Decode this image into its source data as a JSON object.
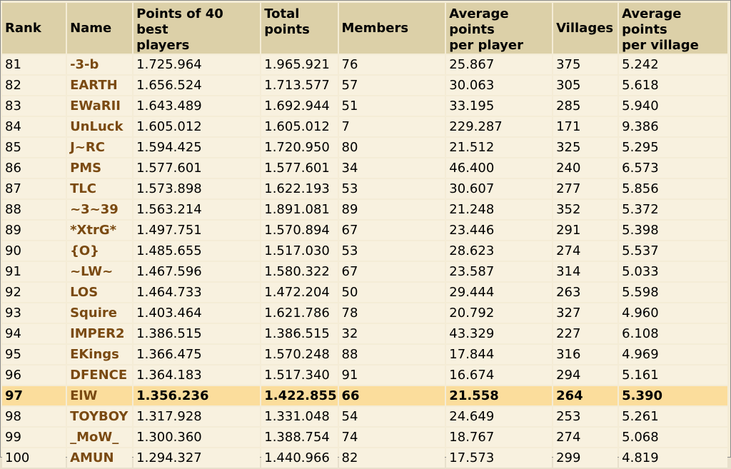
{
  "headers": {
    "rank": "Rank",
    "name": "Name",
    "points40": [
      "Points of 40 best",
      "players"
    ],
    "total": [
      "Total",
      "points"
    ],
    "members": "Members",
    "avg_player": [
      "Average points",
      "per player"
    ],
    "villages": "Villages",
    "avg_village": [
      "Average points",
      "per village"
    ]
  },
  "highlight_color": "#fbdd9c",
  "name_color": "#7a4a12",
  "rows": [
    {
      "rank": "81",
      "name": "-3-b",
      "p40": "1.725.964",
      "total": "1.965.921",
      "members": "76",
      "avg_player": "25.867",
      "villages": "375",
      "avg_village": "5.242"
    },
    {
      "rank": "82",
      "name": "EARTH",
      "p40": "1.656.524",
      "total": "1.713.577",
      "members": "57",
      "avg_player": "30.063",
      "villages": "305",
      "avg_village": "5.618"
    },
    {
      "rank": "83",
      "name": "EWaRII",
      "p40": "1.643.489",
      "total": "1.692.944",
      "members": "51",
      "avg_player": "33.195",
      "villages": "285",
      "avg_village": "5.940"
    },
    {
      "rank": "84",
      "name": "UnLuck",
      "p40": "1.605.012",
      "total": "1.605.012",
      "members": "7",
      "avg_player": "229.287",
      "villages": "171",
      "avg_village": "9.386"
    },
    {
      "rank": "85",
      "name": "J~RC",
      "p40": "1.594.425",
      "total": "1.720.950",
      "members": "80",
      "avg_player": "21.512",
      "villages": "325",
      "avg_village": "5.295"
    },
    {
      "rank": "86",
      "name": "PMS",
      "p40": "1.577.601",
      "total": "1.577.601",
      "members": "34",
      "avg_player": "46.400",
      "villages": "240",
      "avg_village": "6.573"
    },
    {
      "rank": "87",
      "name": "TLC",
      "p40": "1.573.898",
      "total": "1.622.193",
      "members": "53",
      "avg_player": "30.607",
      "villages": "277",
      "avg_village": "5.856"
    },
    {
      "rank": "88",
      "name": "~3~39",
      "p40": "1.563.214",
      "total": "1.891.081",
      "members": "89",
      "avg_player": "21.248",
      "villages": "352",
      "avg_village": "5.372"
    },
    {
      "rank": "89",
      "name": "*XtrG*",
      "p40": "1.497.751",
      "total": "1.570.894",
      "members": "67",
      "avg_player": "23.446",
      "villages": "291",
      "avg_village": "5.398"
    },
    {
      "rank": "90",
      "name": "{O}",
      "p40": "1.485.655",
      "total": "1.517.030",
      "members": "53",
      "avg_player": "28.623",
      "villages": "274",
      "avg_village": "5.537"
    },
    {
      "rank": "91",
      "name": "~LW~",
      "p40": "1.467.596",
      "total": "1.580.322",
      "members": "67",
      "avg_player": "23.587",
      "villages": "314",
      "avg_village": "5.033"
    },
    {
      "rank": "92",
      "name": "LOS",
      "p40": "1.464.733",
      "total": "1.472.204",
      "members": "50",
      "avg_player": "29.444",
      "villages": "263",
      "avg_village": "5.598"
    },
    {
      "rank": "93",
      "name": "Squire",
      "p40": "1.403.464",
      "total": "1.621.786",
      "members": "78",
      "avg_player": "20.792",
      "villages": "327",
      "avg_village": "4.960"
    },
    {
      "rank": "94",
      "name": "IMPER2",
      "p40": "1.386.515",
      "total": "1.386.515",
      "members": "32",
      "avg_player": "43.329",
      "villages": "227",
      "avg_village": "6.108"
    },
    {
      "rank": "95",
      "name": "EKings",
      "p40": "1.366.475",
      "total": "1.570.248",
      "members": "88",
      "avg_player": "17.844",
      "villages": "316",
      "avg_village": "4.969"
    },
    {
      "rank": "96",
      "name": "DFENCE",
      "p40": "1.364.183",
      "total": "1.517.340",
      "members": "91",
      "avg_player": "16.674",
      "villages": "294",
      "avg_village": "5.161"
    },
    {
      "rank": "97",
      "name": "ElW",
      "p40": "1.356.236",
      "total": "1.422.855",
      "members": "66",
      "avg_player": "21.558",
      "villages": "264",
      "avg_village": "5.390",
      "highlight": true
    },
    {
      "rank": "98",
      "name": "TOYBOY",
      "p40": "1.317.928",
      "total": "1.331.048",
      "members": "54",
      "avg_player": "24.649",
      "villages": "253",
      "avg_village": "5.261"
    },
    {
      "rank": "99",
      "name": "_MoW_",
      "p40": "1.300.360",
      "total": "1.388.754",
      "members": "74",
      "avg_player": "18.767",
      "villages": "274",
      "avg_village": "5.068"
    },
    {
      "rank": "100",
      "name": "AMUN",
      "p40": "1.294.327",
      "total": "1.440.966",
      "members": "82",
      "avg_player": "17.573",
      "villages": "299",
      "avg_village": "4.819"
    }
  ]
}
